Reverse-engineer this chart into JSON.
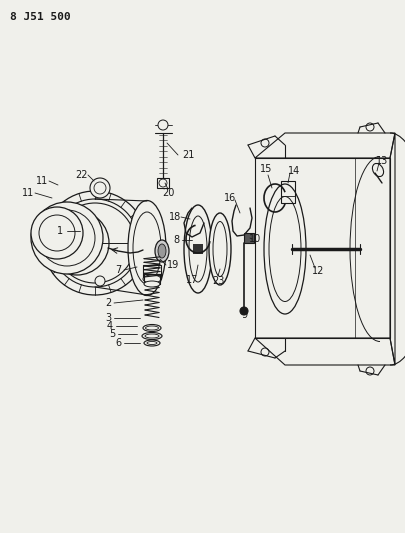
{
  "title": "8 J51 500",
  "bg_color": "#f0f0eb",
  "line_color": "#1a1a1a",
  "fig_w": 4.05,
  "fig_h": 5.33,
  "dpi": 100
}
